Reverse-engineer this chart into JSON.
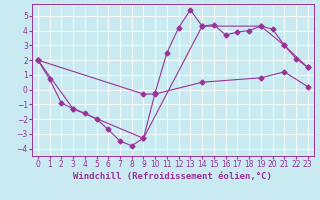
{
  "xlabel": "Windchill (Refroidissement éolien,°C)",
  "background_color": "#c8eaf0",
  "grid_color": "#ffffff",
  "line_color": "#993399",
  "xlim": [
    -0.5,
    23.5
  ],
  "ylim": [
    -4.5,
    5.8
  ],
  "xticks": [
    0,
    1,
    2,
    3,
    4,
    5,
    6,
    7,
    8,
    9,
    10,
    11,
    12,
    13,
    14,
    15,
    16,
    17,
    18,
    19,
    20,
    21,
    22,
    23
  ],
  "yticks": [
    -4,
    -3,
    -2,
    -1,
    0,
    1,
    2,
    3,
    4,
    5
  ],
  "line1_x": [
    0,
    1,
    2,
    3,
    4,
    5,
    6,
    7,
    8,
    9,
    10,
    11,
    12,
    13,
    14,
    15,
    16,
    17,
    18,
    19,
    20,
    21,
    22,
    23
  ],
  "line1_y": [
    2.0,
    0.7,
    -0.9,
    -1.3,
    -1.6,
    -2.0,
    -2.7,
    -3.5,
    -3.8,
    -3.3,
    -0.2,
    2.5,
    4.2,
    5.4,
    4.3,
    4.4,
    3.7,
    3.9,
    4.0,
    4.3,
    4.1,
    3.0,
    2.1,
    1.5
  ],
  "line2_x": [
    0,
    3,
    9,
    14,
    19,
    21,
    23
  ],
  "line2_y": [
    2.0,
    -1.3,
    -3.3,
    4.3,
    4.3,
    3.0,
    1.5
  ],
  "line3_x": [
    0,
    9,
    10,
    14,
    19,
    21,
    23
  ],
  "line3_y": [
    2.0,
    -0.3,
    -0.3,
    0.5,
    0.8,
    1.2,
    0.2
  ],
  "marker": "D",
  "markersize": 2.5,
  "linewidth": 0.8,
  "xlabel_fontsize": 6.5,
  "tick_fontsize": 5.5
}
